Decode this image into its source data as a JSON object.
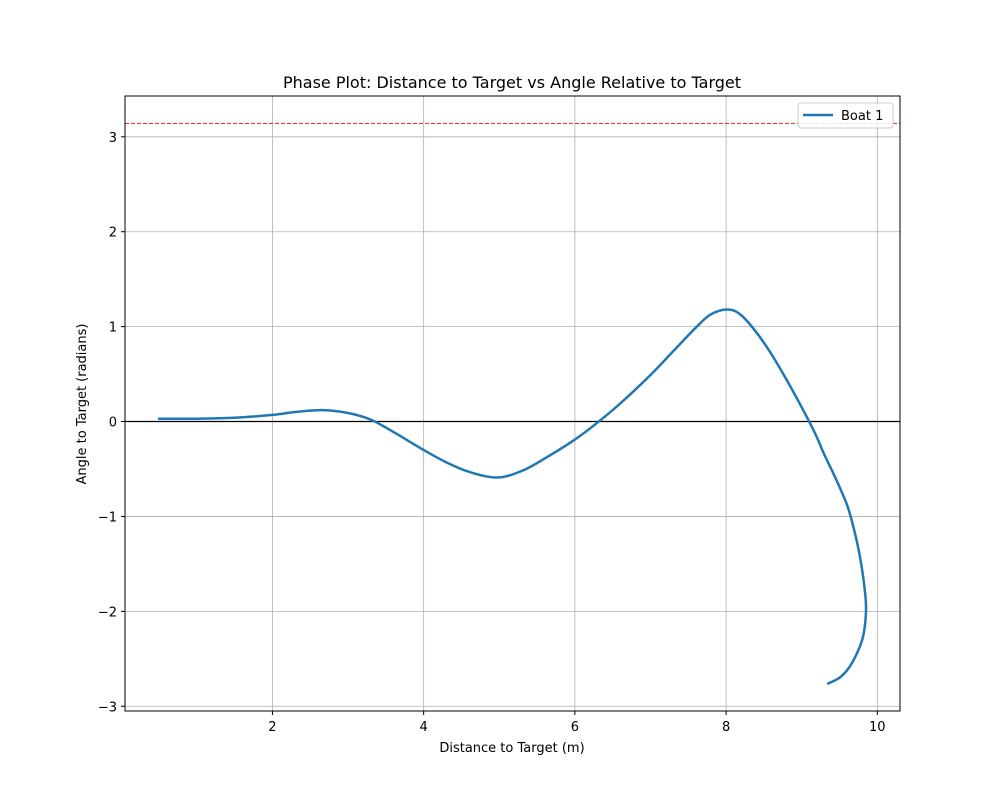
{
  "chart_data": {
    "type": "line",
    "title": "Phase Plot: Distance to Target vs Angle Relative to Target",
    "xlabel": "Distance to Target (m)",
    "ylabel": "Angle to Target (radians)",
    "xlim": [
      0.05,
      10.3
    ],
    "ylim": [
      -3.05,
      3.43
    ],
    "xticks": [
      2,
      4,
      6,
      8,
      10
    ],
    "yticks": [
      -3,
      -2,
      -1,
      0,
      1,
      2,
      3
    ],
    "xtick_labels": [
      "2",
      "4",
      "6",
      "8",
      "10"
    ],
    "ytick_labels": [
      "−3",
      "−2",
      "−1",
      "0",
      "1",
      "2",
      "3"
    ],
    "grid": true,
    "legend_position": "top-right",
    "reference_lines": [
      {
        "axis": "y",
        "value": 3.14159,
        "color": "#d62728",
        "style": "dashed"
      },
      {
        "axis": "y",
        "value": 0,
        "color": "#000000",
        "style": "solid"
      }
    ],
    "series": [
      {
        "name": "Boat 1",
        "color": "#1f77b4",
        "x": [
          0.5,
          1.0,
          1.5,
          2.0,
          2.3,
          2.66,
          3.0,
          3.3,
          3.6,
          4.0,
          4.3,
          4.6,
          4.97,
          5.3,
          5.6,
          6.0,
          6.3,
          6.6,
          7.0,
          7.3,
          7.6,
          7.8,
          8.03,
          8.2,
          8.4,
          8.6,
          8.8,
          9.0,
          9.18,
          9.3,
          9.45,
          9.6,
          9.68,
          9.76,
          9.82,
          9.85,
          9.84,
          9.8,
          9.72,
          9.62,
          9.5,
          9.35
        ],
        "y": [
          0.03,
          0.03,
          0.04,
          0.07,
          0.1,
          0.12,
          0.09,
          0.02,
          -0.11,
          -0.3,
          -0.43,
          -0.53,
          -0.59,
          -0.52,
          -0.39,
          -0.19,
          -0.01,
          0.19,
          0.49,
          0.74,
          0.99,
          1.13,
          1.18,
          1.12,
          0.94,
          0.71,
          0.44,
          0.15,
          -0.13,
          -0.35,
          -0.6,
          -0.88,
          -1.1,
          -1.38,
          -1.68,
          -1.93,
          -2.12,
          -2.3,
          -2.46,
          -2.6,
          -2.7,
          -2.76
        ]
      }
    ]
  }
}
